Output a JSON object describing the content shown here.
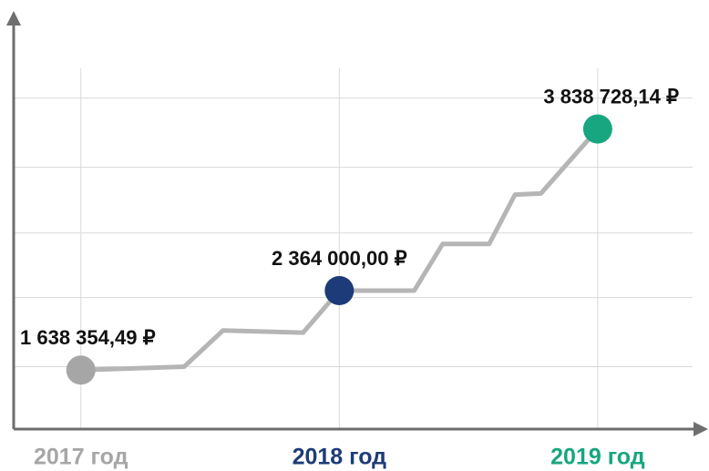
{
  "chart_data": {
    "type": "line",
    "x": [
      2017,
      2017.4,
      2017.55,
      2017.86,
      2018,
      2018.29,
      2018.4,
      2018.58,
      2018.68,
      2018.78,
      2019
    ],
    "series": [
      {
        "color": "#b5b5b5",
        "values": [
          1638354.49,
          1670000,
          2000000,
          1980000,
          2364000,
          2364000,
          2790000,
          2790000,
          3240000,
          3250000,
          3838728.14
        ]
      }
    ],
    "points": {
      "x": [
        2017,
        2018,
        2019
      ],
      "values": [
        1638354.49,
        2364000,
        3838728.14
      ],
      "value_labels": [
        "1 638 354,49 ₽",
        "2 364 000,00 ₽",
        "3 838 728,14 ₽"
      ],
      "colors": [
        "#a6a6a6",
        "#1c3b78",
        "#17a67f"
      ]
    },
    "xlim": [
      2016.74,
      2019.42
    ],
    "xticks": [
      {
        "value": 2017,
        "label": "2017 год"
      },
      {
        "value": 2018,
        "label": "2018 год"
      },
      {
        "value": 2019,
        "label": "2019 год"
      }
    ],
    "xtick_colors": [
      "#a6a6a6",
      "#1c3b78",
      "#17a67f"
    ],
    "ylim": [
      1100000,
      4850000
    ],
    "yticks": [
      1670000,
      2300000,
      2890000,
      3490000,
      4120000
    ],
    "grid": true
  }
}
